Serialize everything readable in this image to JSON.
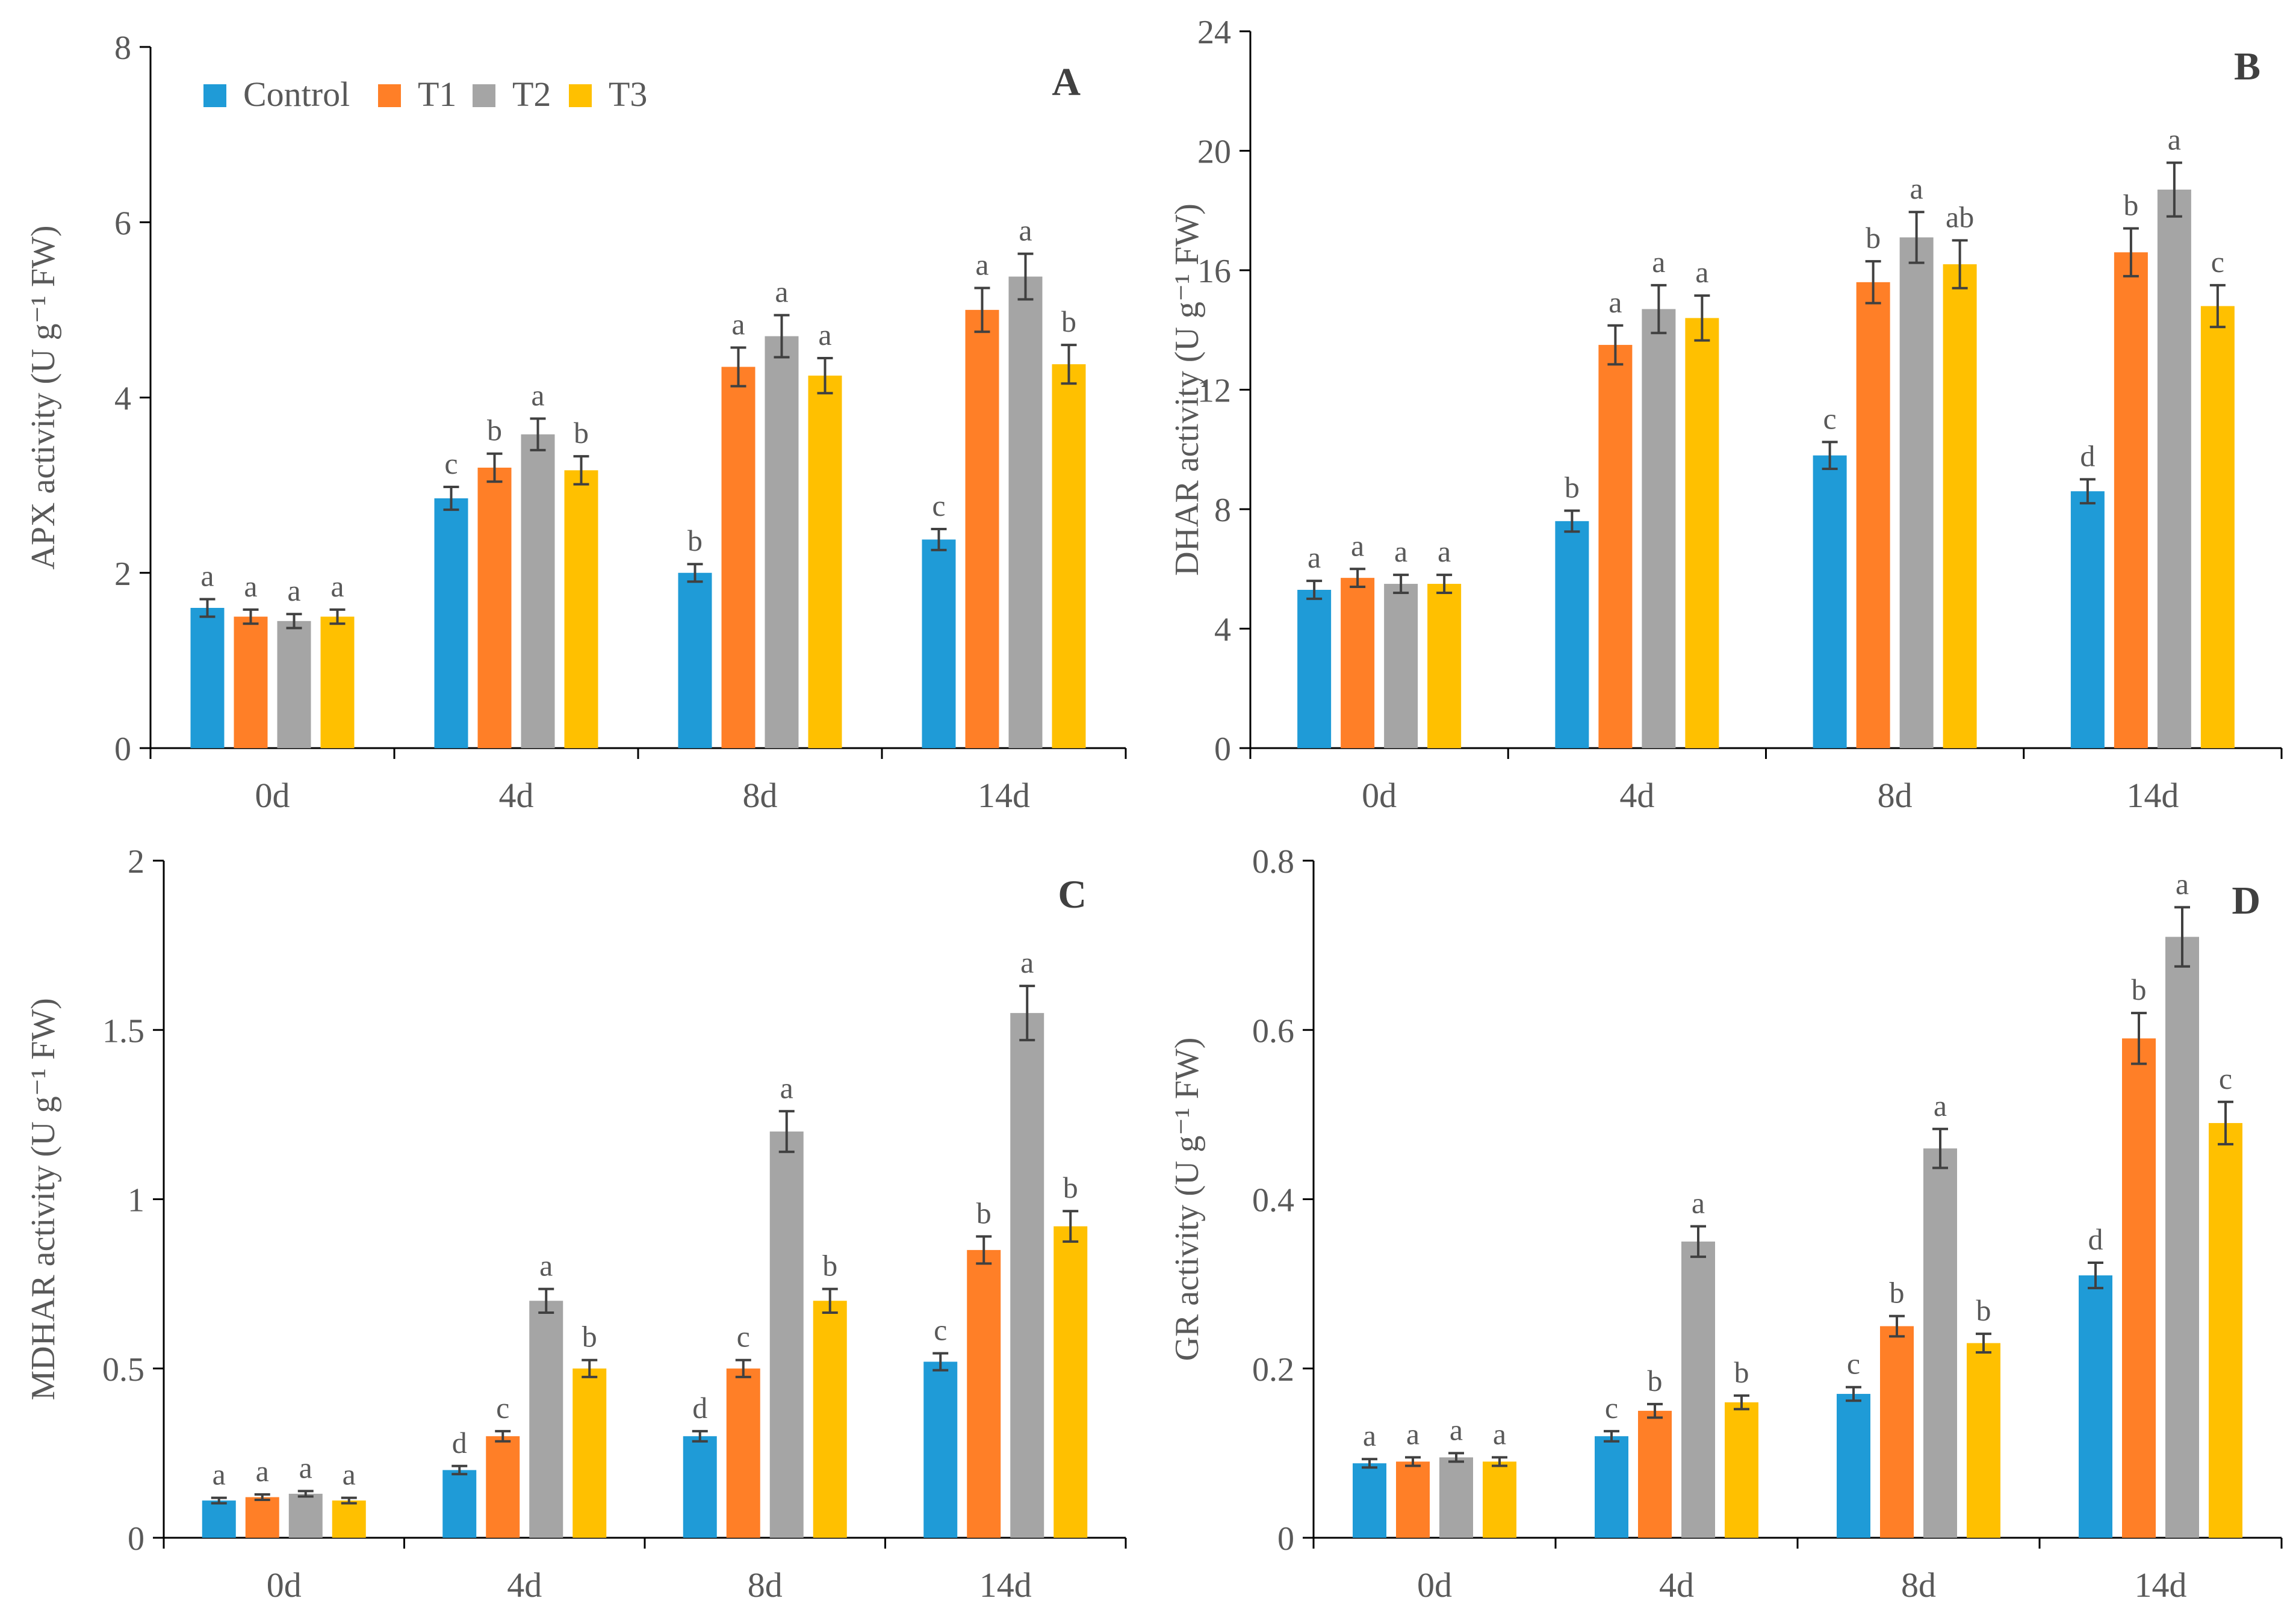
{
  "legend": {
    "items": [
      {
        "name": "Control",
        "color": "#1F9BD7"
      },
      {
        "name": "T1",
        "color": "#FF7F27"
      },
      {
        "name": "T2",
        "color": "#A5A5A5"
      },
      {
        "name": "T3",
        "color": "#FFC000"
      }
    ]
  },
  "chart_data": [
    {
      "type": "bar",
      "panel": "A",
      "ylabel": "APX activity (U g⁻¹ FW)",
      "categories": [
        "0d",
        "4d",
        "8d",
        "14d"
      ],
      "ylim": [
        0,
        8
      ],
      "yticks": [
        0,
        2,
        4,
        6,
        8
      ],
      "ytick_labels": [
        "0",
        "2",
        "4",
        "6",
        "8"
      ],
      "series": [
        {
          "name": "Control",
          "values": [
            1.6,
            2.85,
            2.0,
            2.38
          ],
          "errors": [
            0.1,
            0.13,
            0.1,
            0.12
          ],
          "letters": [
            "a",
            "c",
            "b",
            "c"
          ]
        },
        {
          "name": "T1",
          "values": [
            1.5,
            3.2,
            4.35,
            5.0
          ],
          "errors": [
            0.08,
            0.16,
            0.22,
            0.25
          ],
          "letters": [
            "a",
            "b",
            "a",
            "a"
          ]
        },
        {
          "name": "T2",
          "values": [
            1.45,
            3.58,
            4.7,
            5.38
          ],
          "errors": [
            0.08,
            0.18,
            0.24,
            0.26
          ],
          "letters": [
            "a",
            "a",
            "a",
            "a"
          ]
        },
        {
          "name": "T3",
          "values": [
            1.5,
            3.17,
            4.25,
            4.38
          ],
          "errors": [
            0.08,
            0.16,
            0.2,
            0.22
          ],
          "letters": [
            "a",
            "b",
            "a",
            "b"
          ]
        }
      ]
    },
    {
      "type": "bar",
      "panel": "B",
      "ylabel": "DHAR activity (U g⁻¹ FW)",
      "categories": [
        "0d",
        "4d",
        "8d",
        "14d"
      ],
      "ylim": [
        0,
        24
      ],
      "yticks": [
        0,
        4,
        8,
        12,
        16,
        20,
        24
      ],
      "ytick_labels": [
        "0",
        "4",
        "8",
        "12",
        "16",
        "20",
        "24"
      ],
      "series": [
        {
          "name": "Control",
          "values": [
            5.3,
            7.6,
            9.8,
            8.6
          ],
          "errors": [
            0.3,
            0.35,
            0.45,
            0.4
          ],
          "letters": [
            "a",
            "b",
            "c",
            "d"
          ]
        },
        {
          "name": "T1",
          "values": [
            5.7,
            13.5,
            15.6,
            16.6
          ],
          "errors": [
            0.3,
            0.65,
            0.7,
            0.8
          ],
          "letters": [
            "a",
            "a",
            "b",
            "b"
          ]
        },
        {
          "name": "T2",
          "values": [
            5.5,
            14.7,
            17.1,
            18.7
          ],
          "errors": [
            0.3,
            0.8,
            0.85,
            0.9
          ],
          "letters": [
            "a",
            "a",
            "a",
            "a"
          ]
        },
        {
          "name": "T3",
          "values": [
            5.5,
            14.4,
            16.2,
            14.8
          ],
          "errors": [
            0.3,
            0.75,
            0.8,
            0.7
          ],
          "letters": [
            "a",
            "a",
            "ab",
            "c"
          ]
        }
      ]
    },
    {
      "type": "bar",
      "panel": "C",
      "ylabel": "MDHAR activity (U g⁻¹ FW)",
      "categories": [
        "0d",
        "4d",
        "8d",
        "14d"
      ],
      "ylim": [
        0,
        2
      ],
      "yticks": [
        0,
        0.5,
        1,
        1.5,
        2
      ],
      "ytick_labels": [
        "0",
        "0.5",
        "1",
        "1.5",
        "2"
      ],
      "series": [
        {
          "name": "Control",
          "values": [
            0.11,
            0.2,
            0.3,
            0.52
          ],
          "errors": [
            0.008,
            0.012,
            0.015,
            0.025
          ],
          "letters": [
            "a",
            "d",
            "d",
            "c"
          ]
        },
        {
          "name": "T1",
          "values": [
            0.12,
            0.3,
            0.5,
            0.85
          ],
          "errors": [
            0.008,
            0.015,
            0.025,
            0.04
          ],
          "letters": [
            "a",
            "c",
            "c",
            "b"
          ]
        },
        {
          "name": "T2",
          "values": [
            0.13,
            0.7,
            1.2,
            1.55
          ],
          "errors": [
            0.008,
            0.035,
            0.06,
            0.08
          ],
          "letters": [
            "a",
            "a",
            "a",
            "a"
          ]
        },
        {
          "name": "T3",
          "values": [
            0.11,
            0.5,
            0.7,
            0.92
          ],
          "errors": [
            0.008,
            0.025,
            0.035,
            0.045
          ],
          "letters": [
            "a",
            "b",
            "b",
            "b"
          ]
        }
      ]
    },
    {
      "type": "bar",
      "panel": "D",
      "ylabel": "GR activity (U g⁻¹ FW)",
      "categories": [
        "0d",
        "4d",
        "8d",
        "14d"
      ],
      "ylim": [
        0,
        0.8
      ],
      "yticks": [
        0,
        0.2,
        0.4,
        0.6,
        0.8
      ],
      "ytick_labels": [
        "0",
        "0.2",
        "0.4",
        "0.6",
        "0.8"
      ],
      "series": [
        {
          "name": "Control",
          "values": [
            0.088,
            0.12,
            0.17,
            0.31
          ],
          "errors": [
            0.005,
            0.006,
            0.008,
            0.015
          ],
          "letters": [
            "a",
            "c",
            "c",
            "d"
          ]
        },
        {
          "name": "T1",
          "values": [
            0.09,
            0.15,
            0.25,
            0.59
          ],
          "errors": [
            0.005,
            0.008,
            0.012,
            0.03
          ],
          "letters": [
            "a",
            "b",
            "b",
            "b"
          ]
        },
        {
          "name": "T2",
          "values": [
            0.095,
            0.35,
            0.46,
            0.71
          ],
          "errors": [
            0.005,
            0.018,
            0.023,
            0.035
          ],
          "letters": [
            "a",
            "a",
            "a",
            "a"
          ]
        },
        {
          "name": "T3",
          "values": [
            0.09,
            0.16,
            0.23,
            0.49
          ],
          "errors": [
            0.005,
            0.008,
            0.011,
            0.025
          ],
          "letters": [
            "a",
            "b",
            "b",
            "c"
          ]
        }
      ]
    }
  ]
}
